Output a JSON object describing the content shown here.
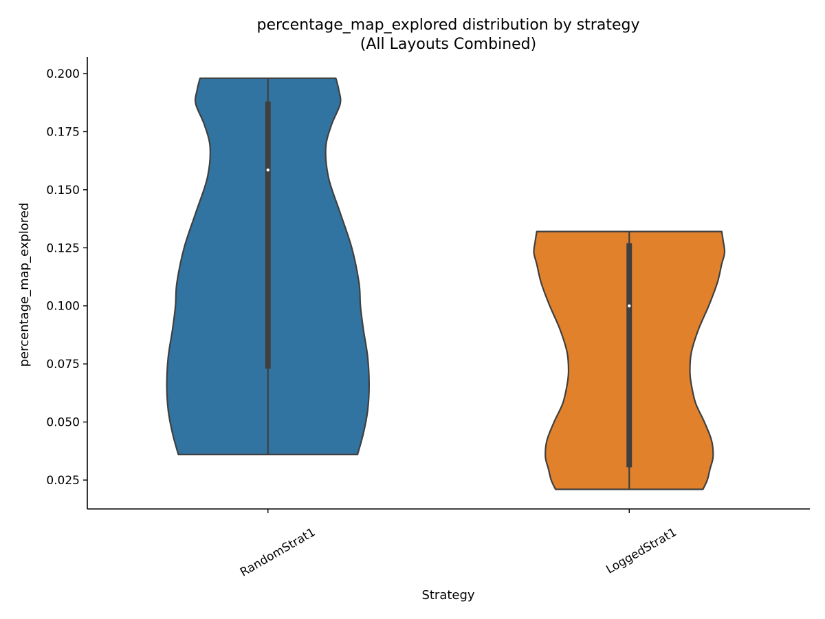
{
  "chart_data": {
    "type": "violin",
    "title_line1": "percentage_map_explored distribution by strategy",
    "title_line2": "(All Layouts Combined)",
    "xlabel": "Strategy",
    "ylabel": "percentage_map_explored",
    "ylim": [
      0.013,
      0.207
    ],
    "yticks": [
      0.025,
      0.05,
      0.075,
      0.1,
      0.125,
      0.15,
      0.175,
      0.2
    ],
    "ytick_labels": [
      "0.025",
      "0.050",
      "0.075",
      "0.100",
      "0.125",
      "0.150",
      "0.175",
      "0.200"
    ],
    "categories": [
      "RandomStrat1",
      "LoggedStrat1"
    ],
    "grid": false,
    "legend": "none",
    "series": [
      {
        "category": "RandomStrat1",
        "color": "#3274a1",
        "min": 0.036,
        "q1": 0.073,
        "median": 0.1585,
        "q3": 0.188,
        "max": 0.198,
        "density_profile": [
          [
            0.036,
            0.62
          ],
          [
            0.045,
            0.66
          ],
          [
            0.055,
            0.69
          ],
          [
            0.066,
            0.7
          ],
          [
            0.078,
            0.69
          ],
          [
            0.09,
            0.66
          ],
          [
            0.1,
            0.64
          ],
          [
            0.11,
            0.63
          ],
          [
            0.125,
            0.58
          ],
          [
            0.14,
            0.5
          ],
          [
            0.155,
            0.42
          ],
          [
            0.168,
            0.4
          ],
          [
            0.178,
            0.44
          ],
          [
            0.187,
            0.5
          ],
          [
            0.193,
            0.49
          ],
          [
            0.198,
            0.47
          ]
        ]
      },
      {
        "category": "LoggedStrat1",
        "color": "#e1812c",
        "min": 0.021,
        "q1": 0.0305,
        "median": 0.1,
        "q3": 0.127,
        "max": 0.132,
        "density_profile": [
          [
            0.021,
            0.51
          ],
          [
            0.025,
            0.54
          ],
          [
            0.03,
            0.56
          ],
          [
            0.035,
            0.58
          ],
          [
            0.042,
            0.57
          ],
          [
            0.05,
            0.52
          ],
          [
            0.058,
            0.46
          ],
          [
            0.066,
            0.43
          ],
          [
            0.072,
            0.42
          ],
          [
            0.08,
            0.43
          ],
          [
            0.09,
            0.48
          ],
          [
            0.1,
            0.55
          ],
          [
            0.11,
            0.61
          ],
          [
            0.118,
            0.64
          ],
          [
            0.123,
            0.66
          ],
          [
            0.128,
            0.65
          ],
          [
            0.132,
            0.64
          ]
        ]
      }
    ]
  }
}
